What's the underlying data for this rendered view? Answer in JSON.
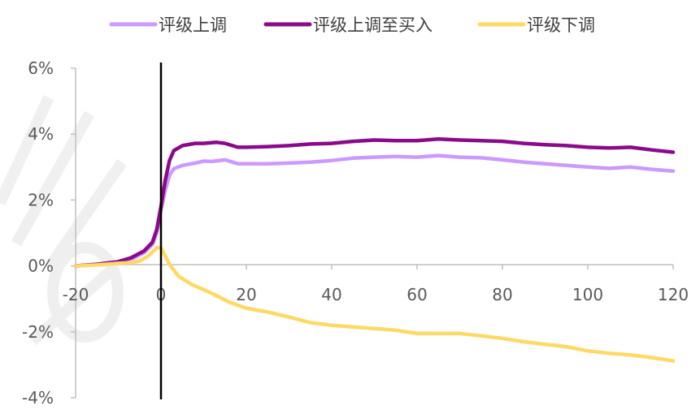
{
  "chart_data": {
    "type": "line",
    "title": "",
    "xlabel": "",
    "ylabel": "",
    "xlim": [
      -20,
      120
    ],
    "ylim": [
      -4,
      6
    ],
    "x_ticks": [
      "-20",
      "0",
      "20",
      "40",
      "60",
      "80",
      "100",
      "120"
    ],
    "y_ticks": [
      "6%",
      "4%",
      "2%",
      "0%",
      "-2%",
      "-4%"
    ],
    "event_marker_x": 0,
    "grid": false,
    "legend_position": "top",
    "series": [
      {
        "name": "评级上调",
        "color": "#CC99FF",
        "points": [
          [
            -20,
            0
          ],
          [
            -15,
            0.05
          ],
          [
            -10,
            0.12
          ],
          [
            -7,
            0.2
          ],
          [
            -4,
            0.4
          ],
          [
            -2,
            0.65
          ],
          [
            -1,
            1.0
          ],
          [
            0,
            1.7
          ],
          [
            1,
            2.3
          ],
          [
            2,
            2.75
          ],
          [
            3,
            2.95
          ],
          [
            5,
            3.05
          ],
          [
            8,
            3.12
          ],
          [
            10,
            3.18
          ],
          [
            12,
            3.17
          ],
          [
            15,
            3.22
          ],
          [
            18,
            3.1
          ],
          [
            20,
            3.1
          ],
          [
            25,
            3.1
          ],
          [
            30,
            3.12
          ],
          [
            35,
            3.15
          ],
          [
            40,
            3.2
          ],
          [
            45,
            3.27
          ],
          [
            50,
            3.3
          ],
          [
            55,
            3.32
          ],
          [
            60,
            3.3
          ],
          [
            65,
            3.35
          ],
          [
            70,
            3.3
          ],
          [
            75,
            3.28
          ],
          [
            80,
            3.22
          ],
          [
            85,
            3.15
          ],
          [
            90,
            3.1
          ],
          [
            95,
            3.05
          ],
          [
            100,
            3.0
          ],
          [
            105,
            2.96
          ],
          [
            110,
            3.0
          ],
          [
            115,
            2.93
          ],
          [
            120,
            2.88
          ]
        ]
      },
      {
        "name": "评级上调至买入",
        "color": "#8B0A8B",
        "points": [
          [
            -20,
            0
          ],
          [
            -15,
            0.05
          ],
          [
            -10,
            0.13
          ],
          [
            -7,
            0.25
          ],
          [
            -4,
            0.45
          ],
          [
            -2,
            0.72
          ],
          [
            -1,
            1.1
          ],
          [
            0,
            1.8
          ],
          [
            1,
            2.6
          ],
          [
            2,
            3.2
          ],
          [
            3,
            3.5
          ],
          [
            5,
            3.65
          ],
          [
            8,
            3.72
          ],
          [
            10,
            3.72
          ],
          [
            13,
            3.75
          ],
          [
            15,
            3.72
          ],
          [
            18,
            3.6
          ],
          [
            20,
            3.6
          ],
          [
            25,
            3.62
          ],
          [
            30,
            3.65
          ],
          [
            35,
            3.7
          ],
          [
            40,
            3.72
          ],
          [
            45,
            3.78
          ],
          [
            50,
            3.82
          ],
          [
            55,
            3.8
          ],
          [
            60,
            3.8
          ],
          [
            65,
            3.85
          ],
          [
            70,
            3.82
          ],
          [
            75,
            3.8
          ],
          [
            80,
            3.78
          ],
          [
            85,
            3.72
          ],
          [
            90,
            3.68
          ],
          [
            95,
            3.65
          ],
          [
            100,
            3.6
          ],
          [
            105,
            3.58
          ],
          [
            110,
            3.6
          ],
          [
            115,
            3.52
          ],
          [
            120,
            3.45
          ]
        ]
      },
      {
        "name": "评级下调",
        "color": "#FFD966",
        "points": [
          [
            -20,
            0
          ],
          [
            -15,
            0.03
          ],
          [
            -10,
            0.08
          ],
          [
            -7,
            0.1
          ],
          [
            -5,
            0.15
          ],
          [
            -3,
            0.3
          ],
          [
            -1,
            0.55
          ],
          [
            0,
            0.55
          ],
          [
            1,
            0.3
          ],
          [
            2,
            0.05
          ],
          [
            4,
            -0.3
          ],
          [
            7,
            -0.55
          ],
          [
            10,
            -0.72
          ],
          [
            13,
            -0.9
          ],
          [
            16,
            -1.1
          ],
          [
            20,
            -1.28
          ],
          [
            25,
            -1.4
          ],
          [
            30,
            -1.55
          ],
          [
            35,
            -1.72
          ],
          [
            40,
            -1.8
          ],
          [
            45,
            -1.85
          ],
          [
            50,
            -1.9
          ],
          [
            55,
            -1.95
          ],
          [
            60,
            -2.05
          ],
          [
            65,
            -2.05
          ],
          [
            70,
            -2.05
          ],
          [
            75,
            -2.12
          ],
          [
            80,
            -2.2
          ],
          [
            85,
            -2.3
          ],
          [
            90,
            -2.38
          ],
          [
            95,
            -2.45
          ],
          [
            100,
            -2.58
          ],
          [
            105,
            -2.65
          ],
          [
            110,
            -2.7
          ],
          [
            115,
            -2.78
          ],
          [
            120,
            -2.88
          ]
        ]
      }
    ]
  }
}
